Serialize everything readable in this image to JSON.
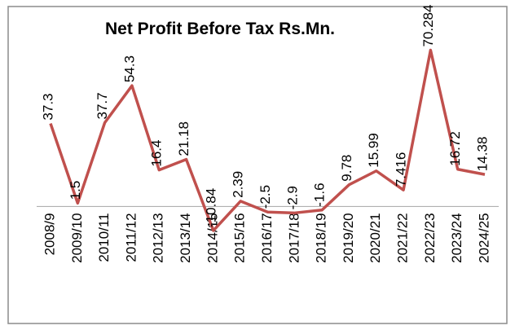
{
  "chart_data": {
    "type": "line",
    "title": "Net Profit Before Tax Rs.Mn.",
    "categories": [
      "2008/9",
      "2009/10",
      "2010/11",
      "2011/12",
      "2012/13",
      "2013/14",
      "2014/15",
      "2015/16",
      "2016/17",
      "2017/18",
      "2018/19",
      "2019/20",
      "2020/21",
      "2021/22",
      "2022/23",
      "2023/24",
      "2024/25"
    ],
    "series": [
      {
        "name": "Net Profit Before Tax",
        "color": "#c0504d",
        "values": [
          37.3,
          1.5,
          37.7,
          54.3,
          16.4,
          21.18,
          -10.84,
          2.39,
          -2.5,
          -2.9,
          -1.6,
          9.78,
          15.99,
          7.416,
          70.284,
          16.72,
          14.38
        ]
      }
    ],
    "ylim": [
      -20,
      80
    ]
  }
}
